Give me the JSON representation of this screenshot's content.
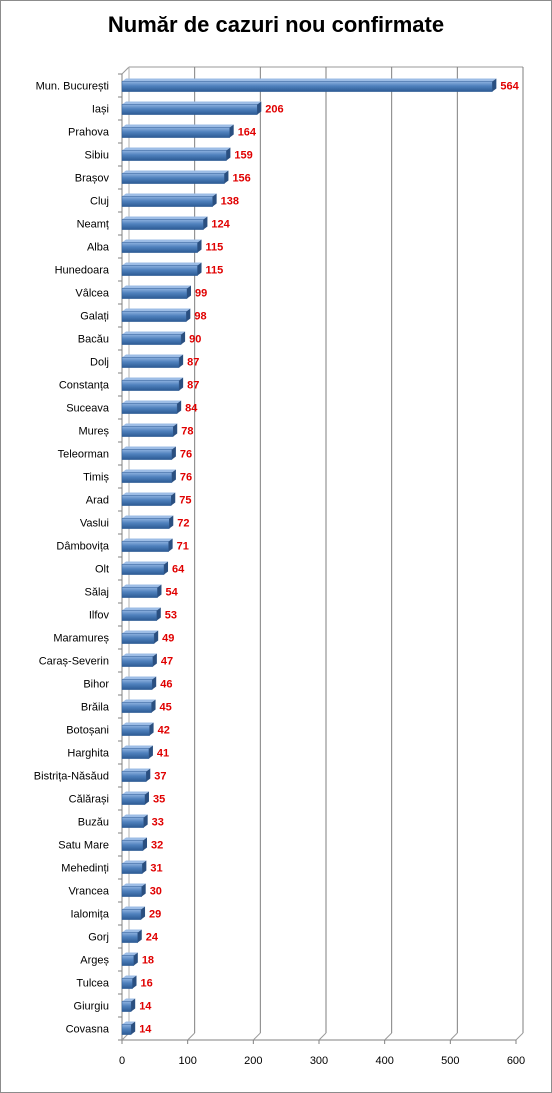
{
  "chart_data": {
    "type": "bar",
    "orientation": "horizontal",
    "title": "Număr de cazuri nou confirmate",
    "xlabel": "",
    "ylabel": "",
    "xlim": [
      0,
      600
    ],
    "xticks": [
      "0",
      "100",
      "200",
      "300",
      "400",
      "500",
      "600"
    ],
    "grid": true,
    "categories": [
      "Mun. București",
      "Iași",
      "Prahova",
      "Sibiu",
      "Brașov",
      "Cluj",
      "Neamț",
      "Alba",
      "Hunedoara",
      "Vâlcea",
      "Galați",
      "Bacău",
      "Dolj",
      "Constanța",
      "Suceava",
      "Mureș",
      "Teleorman",
      "Timiș",
      "Arad",
      "Vaslui",
      "Dâmbovița",
      "Olt",
      "Sălaj",
      "Ilfov",
      "Maramureș",
      "Caraș-Severin",
      "Bihor",
      "Brăila",
      "Botoșani",
      "Harghita",
      "Bistrița-Năsăud",
      "Călărași",
      "Buzău",
      "Satu Mare",
      "Mehedinți",
      "Vrancea",
      "Ialomița",
      "Gorj",
      "Argeș",
      "Tulcea",
      "Giurgiu",
      "Covasna"
    ],
    "values": [
      564,
      206,
      164,
      159,
      156,
      138,
      124,
      115,
      115,
      99,
      98,
      90,
      87,
      87,
      84,
      78,
      76,
      76,
      75,
      72,
      71,
      64,
      54,
      53,
      49,
      47,
      46,
      45,
      42,
      41,
      37,
      35,
      33,
      32,
      31,
      30,
      29,
      24,
      18,
      16,
      14,
      14
    ],
    "bar_color": "#4f81bd",
    "label_color": "#e00000"
  }
}
